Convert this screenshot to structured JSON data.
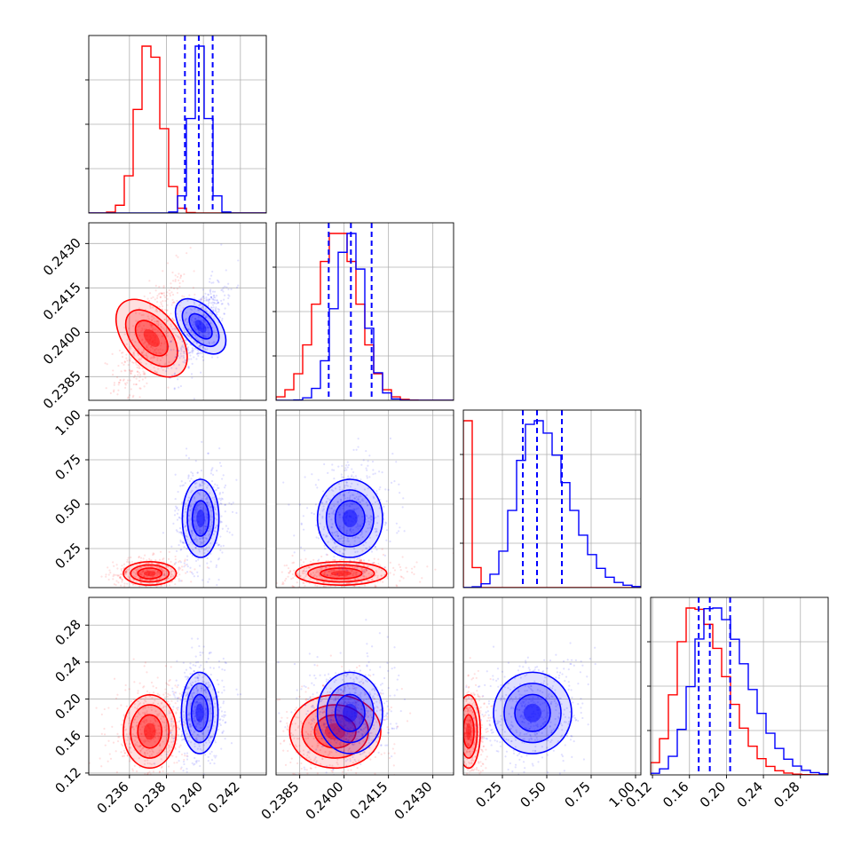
{
  "chart_data": {
    "type": "corner",
    "parameters": 4,
    "colors": {
      "red": "#ff0000",
      "blue": "#0000ff",
      "grid": "#b0b0b0"
    },
    "ranges": [
      [
        0.2338,
        0.2434
      ],
      [
        0.2377,
        0.2437
      ],
      [
        0.03,
        1.03
      ],
      [
        0.118,
        0.31
      ]
    ],
    "x_ticks": [
      [
        "0.236",
        "0.238",
        "0.240",
        "0.242"
      ],
      [
        "0.2385",
        "0.2400",
        "0.2415",
        "0.2430"
      ],
      [
        "0.25",
        "0.50",
        "0.75",
        "1.00"
      ],
      [
        "0.12",
        "0.16",
        "0.20",
        "0.24",
        "0.28"
      ]
    ],
    "y_ticks": [
      [],
      [
        "0.2385",
        "0.2400",
        "0.2415",
        "0.2430"
      ],
      [
        "0.25",
        "0.50",
        "0.75",
        "1.00"
      ],
      [
        "0.12",
        "0.16",
        "0.20",
        "0.24",
        "0.28"
      ]
    ],
    "quantiles_blue": [
      [
        0.239,
        0.23975,
        0.2405
      ],
      [
        0.23948,
        0.24023,
        0.24093
      ],
      [
        0.365,
        0.445,
        0.585
      ],
      [
        0.17,
        0.182,
        0.204
      ]
    ],
    "series": [
      {
        "name": "",
        "color": "#ff0000",
        "mean": [
          0.2371,
          0.2398,
          0.11,
          0.165
        ],
        "sd": [
          0.00065,
          0.0007,
          0.03,
          0.018
        ],
        "hist_peaks": [
          0.2371,
          0.2398,
          0.06,
          0.164
        ],
        "contour_centers": [
          [
            0.2372,
            0.2398
          ],
          [
            0.2371,
            0.11
          ],
          [
            0.2399,
            0.11
          ],
          [
            0.2371,
            0.165
          ],
          [
            0.2397,
            0.165
          ],
          [
            0.06,
            0.165
          ]
        ]
      },
      {
        "name": "",
        "color": "#0000ff",
        "mean": [
          0.23975,
          0.24023,
          0.44,
          0.185
        ],
        "sd": [
          0.00045,
          0.0005,
          0.1,
          0.02
        ],
        "hist_peaks": [
          0.2398,
          0.2402,
          0.43,
          0.184
        ],
        "contour_centers": [
          [
            0.23985,
            0.2402
          ],
          [
            0.23985,
            0.42
          ],
          [
            0.2402,
            0.42
          ],
          [
            0.2398,
            0.185
          ],
          [
            0.2402,
            0.185
          ],
          [
            0.42,
            0.185
          ]
        ]
      }
    ]
  }
}
